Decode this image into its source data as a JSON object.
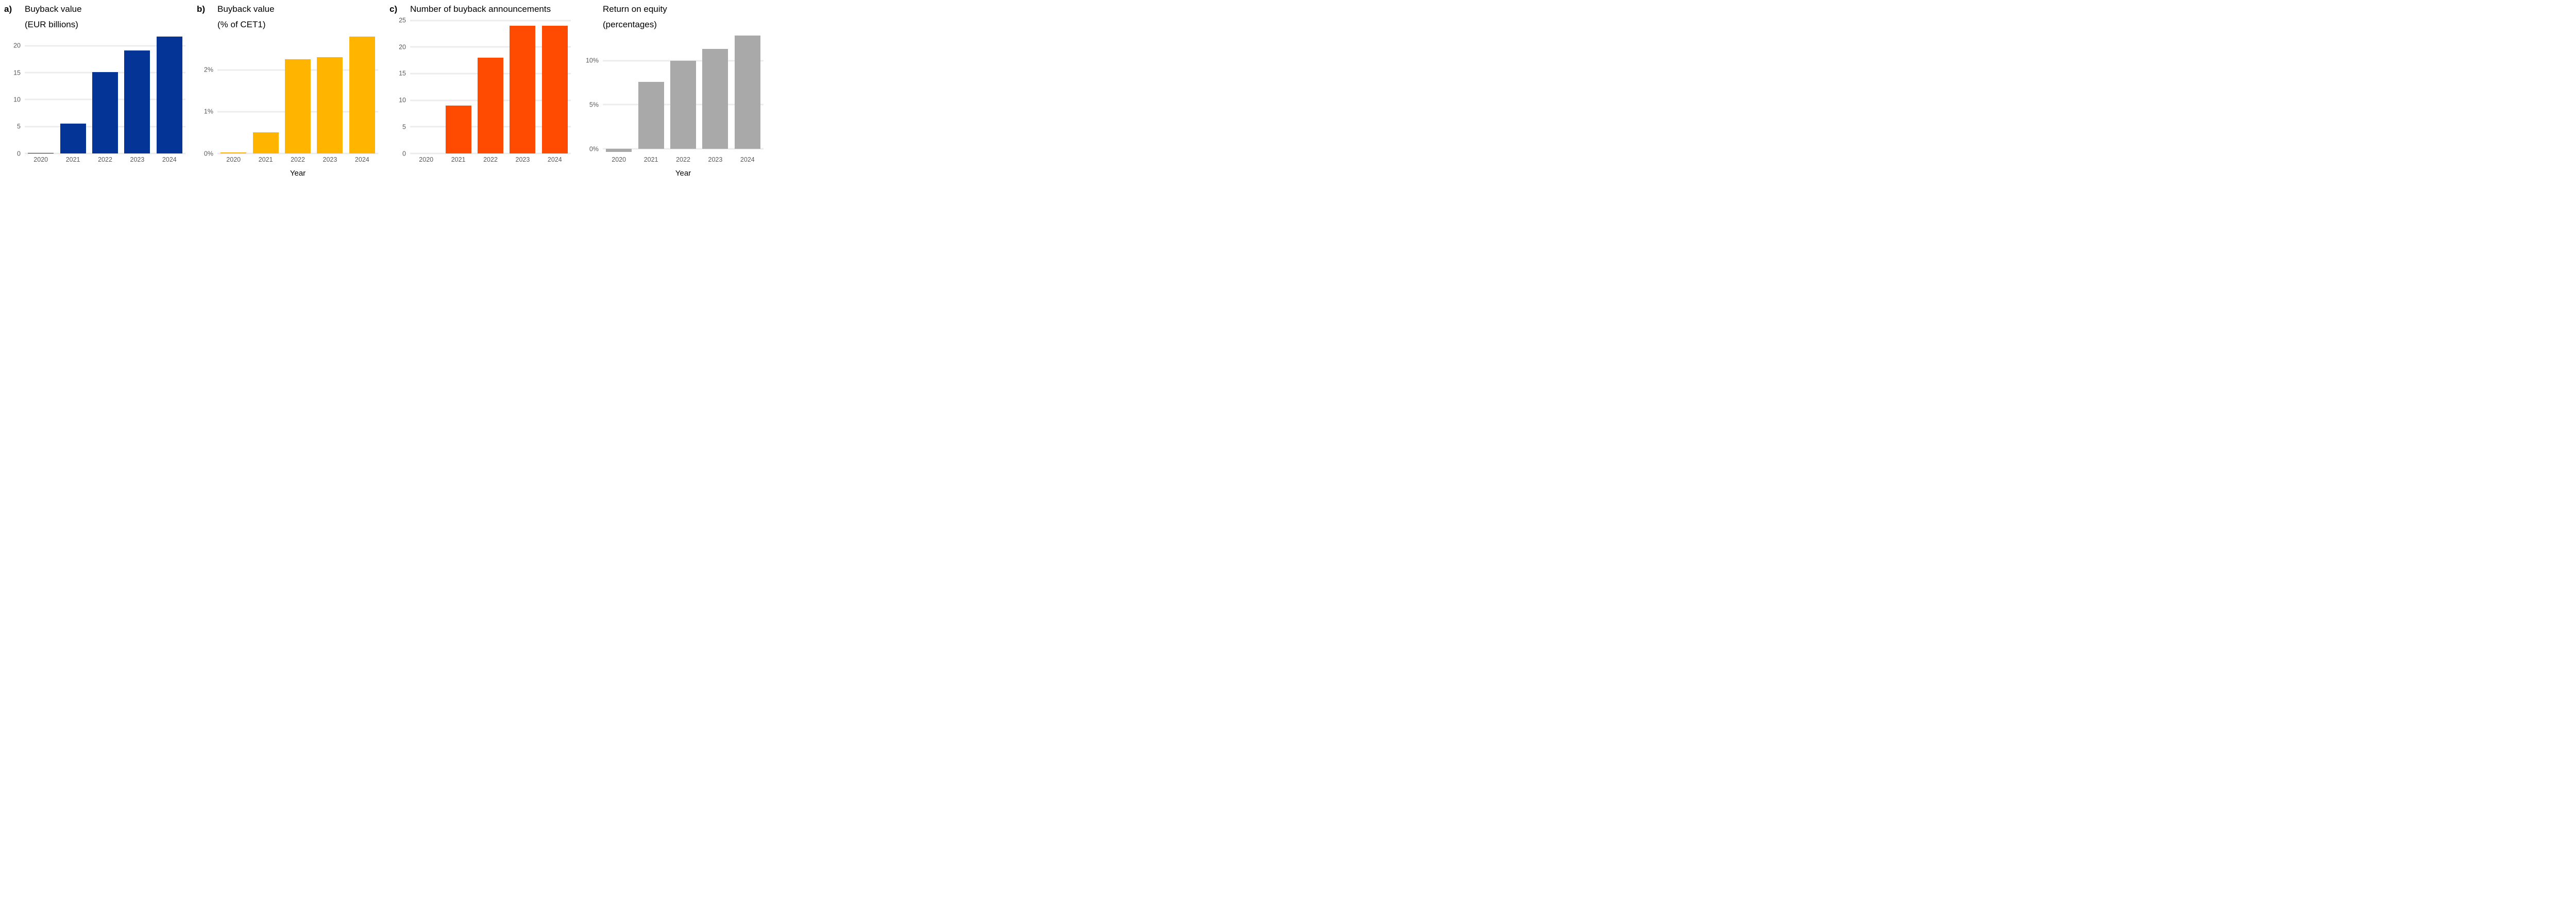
{
  "figure": {
    "background": "#ffffff",
    "title_color": "#000000",
    "tick_color": "#595959",
    "gridline_color": "#ececec"
  },
  "chart_data": [
    {
      "type": "bar",
      "panel_label": "a)",
      "title": "Buyback value",
      "subtitle": "(EUR billions)",
      "bar_color": "#043596",
      "categories": [
        "2020",
        "2021",
        "2022",
        "2023",
        "2024"
      ],
      "values": [
        0.1,
        5.5,
        15.1,
        19.1,
        21.7
      ],
      "ymin": 0,
      "ymax": 22.1,
      "grid": true,
      "legend": "none",
      "xlabel": "",
      "ylabel": "",
      "yticks": [
        {
          "value": 0,
          "label": "0"
        },
        {
          "value": 5,
          "label": "5"
        },
        {
          "value": 10,
          "label": "10"
        },
        {
          "value": 15,
          "label": "15"
        },
        {
          "value": 20,
          "label": "20"
        }
      ]
    },
    {
      "type": "bar",
      "panel_label": "b)",
      "title": "Buyback value",
      "subtitle": "(% of CET1)",
      "bar_color": "#ffb400",
      "categories": [
        "2020",
        "2021",
        "2022",
        "2023",
        "2024"
      ],
      "values": [
        0.02,
        0.5,
        2.25,
        2.3,
        2.8
      ],
      "ymin": 0,
      "ymax": 2.85,
      "grid": true,
      "legend": "none",
      "xlabel": "Year",
      "ylabel": "",
      "yticks": [
        {
          "value": 0,
          "label": "0%"
        },
        {
          "value": 1,
          "label": "1%"
        },
        {
          "value": 2,
          "label": "2%"
        }
      ]
    },
    {
      "type": "bar",
      "panel_label": "c)",
      "title": "Number of buyback announcements",
      "subtitle": "",
      "bar_color": "#ff4b02",
      "categories": [
        "2020",
        "2021",
        "2022",
        "2023",
        "2024"
      ],
      "values": [
        0,
        9,
        18,
        24,
        24
      ],
      "ymin": 0,
      "ymax": 25.3,
      "grid": true,
      "legend": "none",
      "xlabel": "",
      "ylabel": "",
      "yticks": [
        {
          "value": 0,
          "label": "0"
        },
        {
          "value": 5,
          "label": "5"
        },
        {
          "value": 10,
          "label": "10"
        },
        {
          "value": 15,
          "label": "15"
        },
        {
          "value": 20,
          "label": "20"
        },
        {
          "value": 25,
          "label": "25"
        }
      ]
    },
    {
      "type": "bar",
      "panel_label": "",
      "title": "Return on equity",
      "subtitle": "(percentages)",
      "bar_color": "#a9a9a9",
      "categories": [
        "2020",
        "2021",
        "2022",
        "2023",
        "2024"
      ],
      "values": [
        -0.35,
        7.6,
        10.0,
        11.3,
        12.8
      ],
      "ymin": -0.5,
      "ymax": 12.95,
      "grid": true,
      "legend": "none",
      "xlabel": "Year",
      "ylabel": "",
      "yticks": [
        {
          "value": 0,
          "label": "0%"
        },
        {
          "value": 5,
          "label": "5%"
        },
        {
          "value": 10,
          "label": "10%"
        }
      ]
    }
  ]
}
